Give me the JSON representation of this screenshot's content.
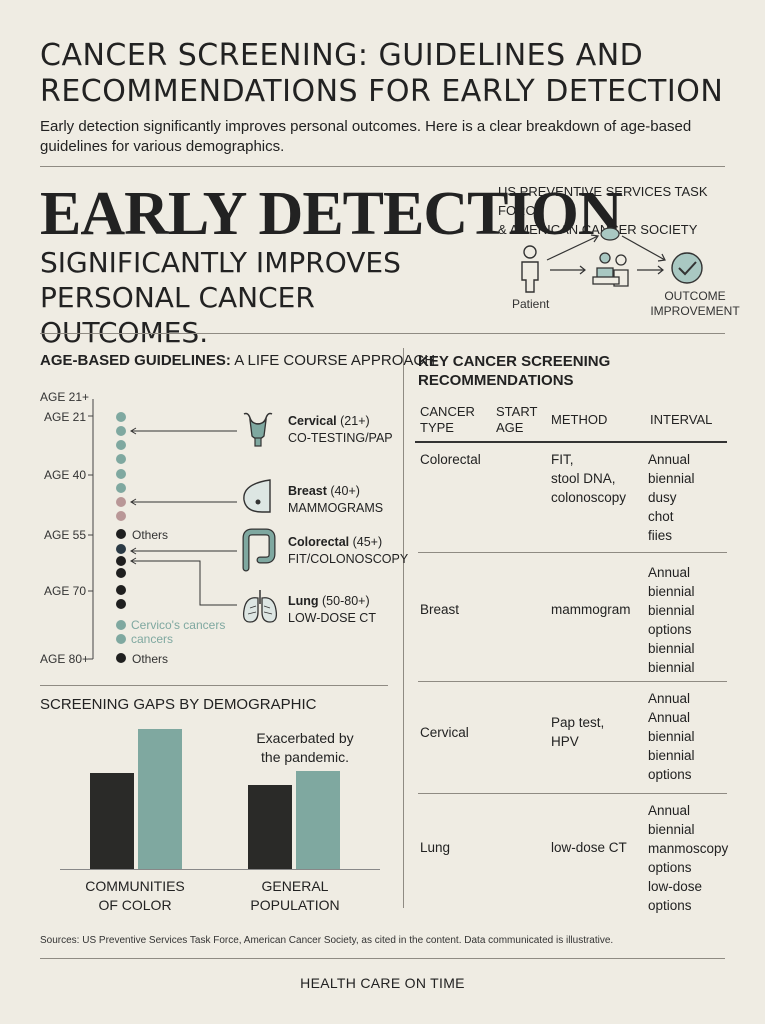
{
  "header": {
    "title_line1": "CANCER SCREENING: GUIDELINES AND",
    "title_line2": "RECOMMENDATIONS FOR EARLY DETECTION",
    "subtitle_line1": "Early detection significantly improves personal outcomes. Here is a clear breakdown of age-based",
    "subtitle_line2": "guidelines for various demographics."
  },
  "hero": {
    "headline": "EARLY DETECTION",
    "subhead_line1": "SIGNIFICANTLY IMPROVES",
    "subhead_line2": "PERSONAL CANCER OUTCOMES.",
    "source_line1": "US PREVENTIVE SERVICES TASK FORCE",
    "source_line2": "& AMERICAN CANCER SOCIETY",
    "patient_label": "Patient",
    "outcome_line1": "OUTCOME",
    "outcome_line2": "IMPROVEMENT"
  },
  "age_section": {
    "heading_bold": "AGE-BASED GUIDELINES:",
    "heading_rest": " A LIFE COURSE APPROACH",
    "ages": [
      "AGE 21+",
      "AGE 21",
      "AGE 40",
      "AGE 55",
      "AGE 70",
      "AGE 80+"
    ],
    "others_1": "Others",
    "others_2": "Others",
    "legend_1": "Cervico's cancers",
    "legend_2": "cancers",
    "items": [
      {
        "name": "Cervical",
        "age": " (21+)",
        "method": "CO-TESTING/PAP",
        "icon": "uterus-icon"
      },
      {
        "name": "Breast",
        "age": " (40+)",
        "method": "MAMMOGRAMS",
        "icon": "breast-icon"
      },
      {
        "name": "Colorectal",
        "age": " (45+)",
        "method": "FIT/COLONOSCOPY",
        "icon": "colon-icon"
      },
      {
        "name": "Lung",
        "age": " (50-80+)",
        "method": "LOW-DOSE CT",
        "icon": "lungs-icon"
      }
    ],
    "colors": {
      "teal": "#7fa8a0",
      "mauve": "#b99797",
      "dark": "#1f1f1f"
    }
  },
  "gaps": {
    "heading": "SCREENING GAPS BY DEMOGRAPHIC",
    "annotation_line1": "Exacerbated by",
    "annotation_line2": "the pandemic.",
    "group1_line1": "COMMUNITIES",
    "group1_line2": "OF COLOR",
    "group2_line1": "GENERAL",
    "group2_line2": "POPULATION"
  },
  "chart_data": {
    "type": "bar",
    "categories": [
      "COMMUNITIES OF COLOR",
      "GENERAL POPULATION"
    ],
    "series": [
      {
        "values": [
          97,
          85
        ],
        "color": "#2a2a28"
      },
      {
        "values": [
          141,
          99
        ],
        "color": "#7fa8a0"
      }
    ],
    "ylim": [
      0,
      150
    ],
    "title": "SCREENING GAPS BY DEMOGRAPHIC",
    "annotation": "Exacerbated by the pandemic."
  },
  "table": {
    "heading_line1": "KEY CANCER SCREENING",
    "heading_line2": "RECOMMENDATIONS",
    "col1_line1": "CANCER",
    "col1_line2": "TYPE",
    "col2_line1": "START",
    "col2_line2": "AGE",
    "col3": "METHOD",
    "col4": "INTERVAL",
    "rows": [
      {
        "type": "Colorectal",
        "method": [
          "FIT,",
          "stool DNA,",
          "colonoscopy"
        ],
        "interval": [
          "Annual",
          "biennial",
          "dusy",
          "chot",
          "fiies"
        ]
      },
      {
        "type": "Breast",
        "method": [
          "mammogram"
        ],
        "interval": [
          "Annual",
          "biennial",
          "biennial",
          "options",
          "biennial",
          "biennial"
        ]
      },
      {
        "type": "Cervical",
        "method": [
          "Pap test,",
          "HPV"
        ],
        "interval": [
          "Annual",
          "Annual",
          "biennial",
          "biennial",
          "options"
        ]
      },
      {
        "type": "Lung",
        "method": [
          "low-dose CT"
        ],
        "interval": [
          "Annual",
          "biennial",
          "manmoscopy",
          "options",
          "low-dose",
          "options"
        ]
      }
    ]
  },
  "footer": {
    "sources": "Sources: US Preventive Services Task Force, American Cancer Society, as cited in the content. Data communicated is illustrative.",
    "brand": "HEALTH CARE ON TIME"
  }
}
